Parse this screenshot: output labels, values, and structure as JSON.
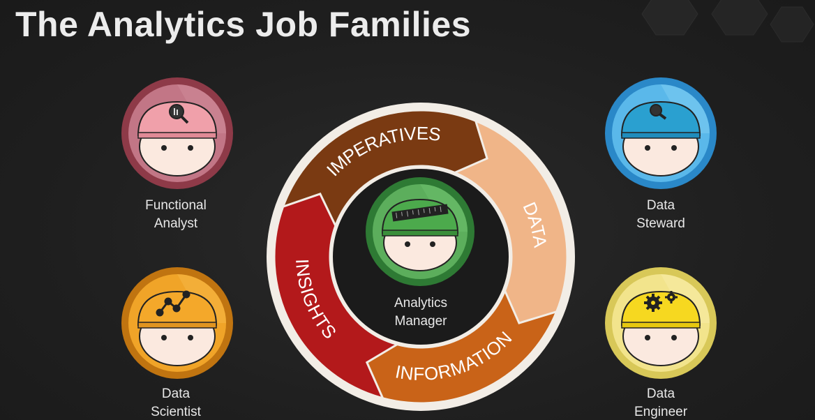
{
  "title": "The Analytics Job Families",
  "roles": {
    "functional_analyst": {
      "line1": "Functional",
      "line2": "Analyst",
      "color": "#b85a6a"
    },
    "data_scientist": {
      "line1": "Data",
      "line2": "Scientist",
      "color": "#e8a020"
    },
    "data_steward": {
      "line1": "Data",
      "line2": "Steward",
      "color": "#46a8e0"
    },
    "data_engineer": {
      "line1": "Data",
      "line2": "Engineer",
      "color": "#e6d870"
    },
    "analytics_manager": {
      "line1": "Analytics",
      "line2": "Manager",
      "color": "#4e9a4e"
    }
  },
  "cycle": {
    "segments": [
      {
        "label": "IMPERATIVES",
        "color": "#7a3a12"
      },
      {
        "label": "DATA",
        "color": "#f0b588"
      },
      {
        "label": "INFORMATION",
        "color": "#c96318"
      },
      {
        "label": "INSIGHTS",
        "color": "#b3191b"
      }
    ]
  }
}
